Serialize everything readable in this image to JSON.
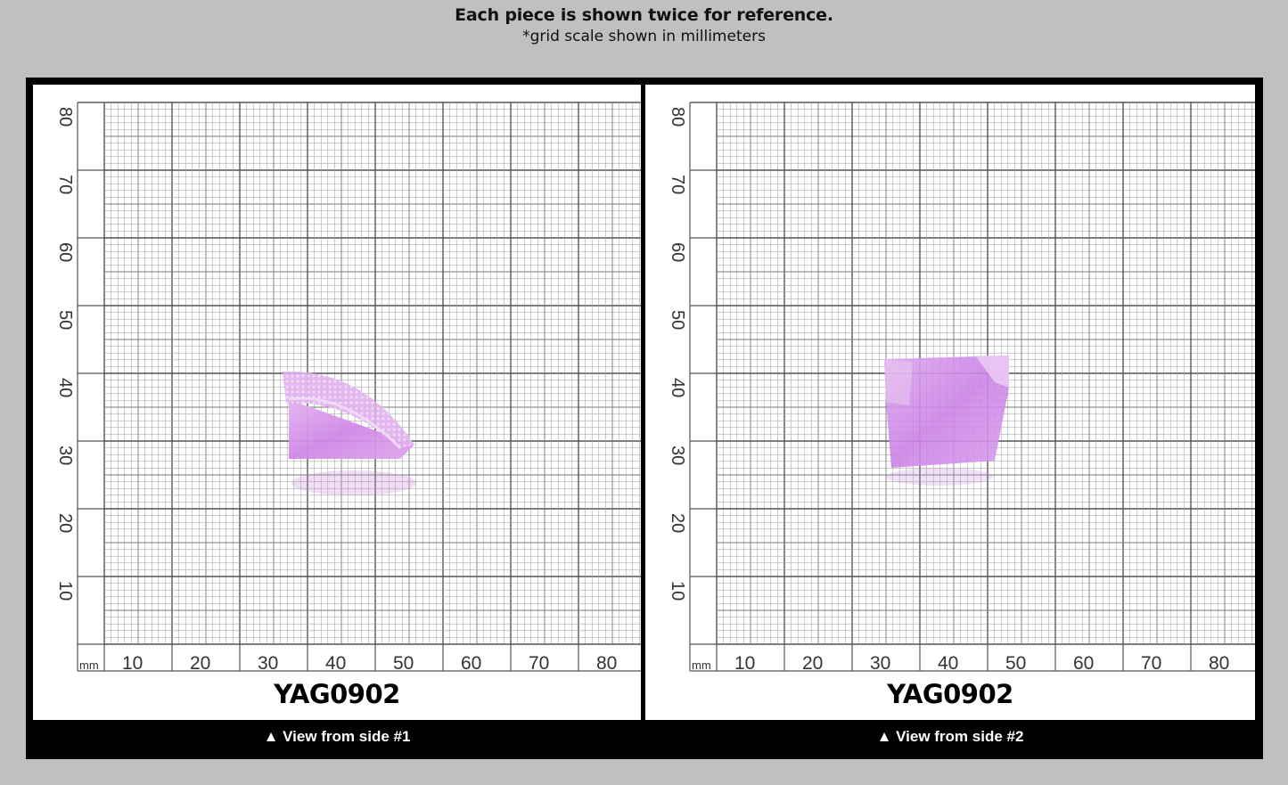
{
  "header": {
    "title": "Each piece is shown twice for reference.",
    "subtitle": "*grid scale shown in millimeters"
  },
  "grid": {
    "unit_label": "mm",
    "x_ticks": [
      "10",
      "20",
      "30",
      "40",
      "50",
      "60",
      "70",
      "80"
    ],
    "y_ticks": [
      "80",
      "70",
      "60",
      "50",
      "40",
      "30",
      "20",
      "10"
    ]
  },
  "panels": [
    {
      "label": "YAG0902",
      "caption": "▲ View from side #1",
      "specimen_color": "#d89ae8"
    },
    {
      "label": "YAG0902",
      "caption": "▲ View from side #2",
      "specimen_color": "#d48de8"
    }
  ]
}
